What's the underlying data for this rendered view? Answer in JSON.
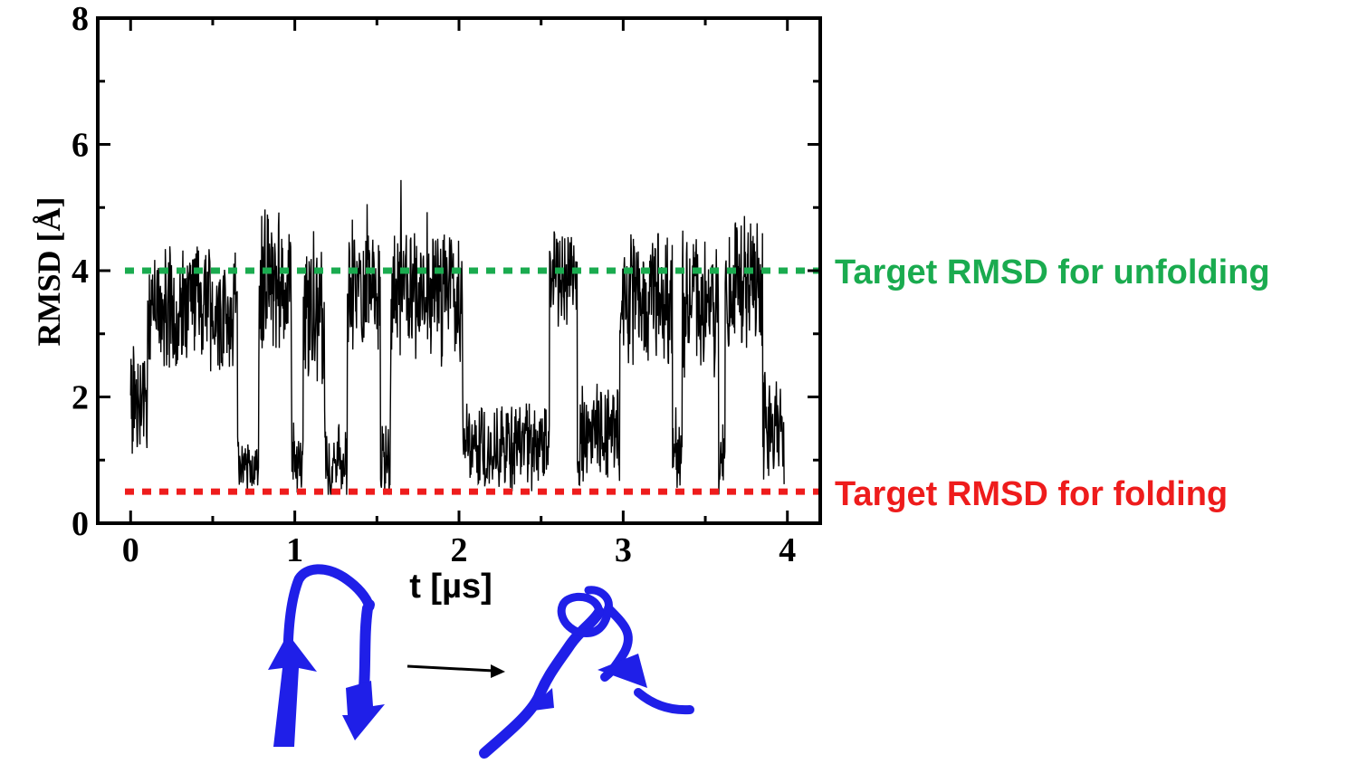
{
  "chart_data": {
    "type": "line",
    "xlabel": "t  [µs]",
    "ylabel": "RMSD  [Å]",
    "xlim": [
      -0.2,
      4.2
    ],
    "ylim": [
      0,
      8
    ],
    "xticks": [
      "0",
      "1",
      "2",
      "3",
      "4"
    ],
    "yticks": [
      "0",
      "2",
      "4",
      "6",
      "8"
    ],
    "grid": false,
    "series": [
      {
        "color": "#000000",
        "segments": [
          {
            "t_start": 0.0,
            "t_end": 0.1,
            "center": 1.8,
            "spread": 1.2
          },
          {
            "t_start": 0.1,
            "t_end": 0.65,
            "center": 3.4,
            "spread": 1.0
          },
          {
            "t_start": 0.65,
            "t_end": 0.78,
            "center": 0.9,
            "spread": 0.5
          },
          {
            "t_start": 0.78,
            "t_end": 0.98,
            "center": 3.9,
            "spread": 1.2
          },
          {
            "t_start": 0.98,
            "t_end": 1.05,
            "center": 1.0,
            "spread": 0.6
          },
          {
            "t_start": 1.05,
            "t_end": 1.18,
            "center": 3.3,
            "spread": 1.1
          },
          {
            "t_start": 1.18,
            "t_end": 1.32,
            "center": 1.0,
            "spread": 0.6
          },
          {
            "t_start": 1.32,
            "t_end": 1.52,
            "center": 3.7,
            "spread": 1.1
          },
          {
            "t_start": 1.52,
            "t_end": 1.58,
            "center": 1.0,
            "spread": 0.6
          },
          {
            "t_start": 1.58,
            "t_end": 2.02,
            "center": 3.5,
            "spread": 1.1
          },
          {
            "t_start": 2.02,
            "t_end": 2.55,
            "center": 1.2,
            "spread": 0.7
          },
          {
            "t_start": 2.55,
            "t_end": 2.72,
            "center": 3.9,
            "spread": 0.9
          },
          {
            "t_start": 2.72,
            "t_end": 2.98,
            "center": 1.4,
            "spread": 0.8
          },
          {
            "t_start": 2.98,
            "t_end": 3.3,
            "center": 3.6,
            "spread": 1.1
          },
          {
            "t_start": 3.3,
            "t_end": 3.36,
            "center": 1.0,
            "spread": 0.6
          },
          {
            "t_start": 3.36,
            "t_end": 3.58,
            "center": 3.4,
            "spread": 1.1
          },
          {
            "t_start": 3.58,
            "t_end": 3.62,
            "center": 1.0,
            "spread": 0.6
          },
          {
            "t_start": 3.62,
            "t_end": 3.85,
            "center": 3.8,
            "spread": 1.1
          },
          {
            "t_start": 3.85,
            "t_end": 3.98,
            "center": 1.5,
            "spread": 0.9
          }
        ]
      }
    ],
    "reference_lines": [
      {
        "y": 4.0,
        "color": "#1aab4f",
        "style": "dotted",
        "label": "Target RMSD for unfolding"
      },
      {
        "y": 0.5,
        "color": "#ee1c1c",
        "style": "dotted",
        "label": "Target RMSD for folding"
      }
    ]
  },
  "illustration": {
    "structure_color": "#1f1fe8",
    "arrow_color": "#000000"
  }
}
